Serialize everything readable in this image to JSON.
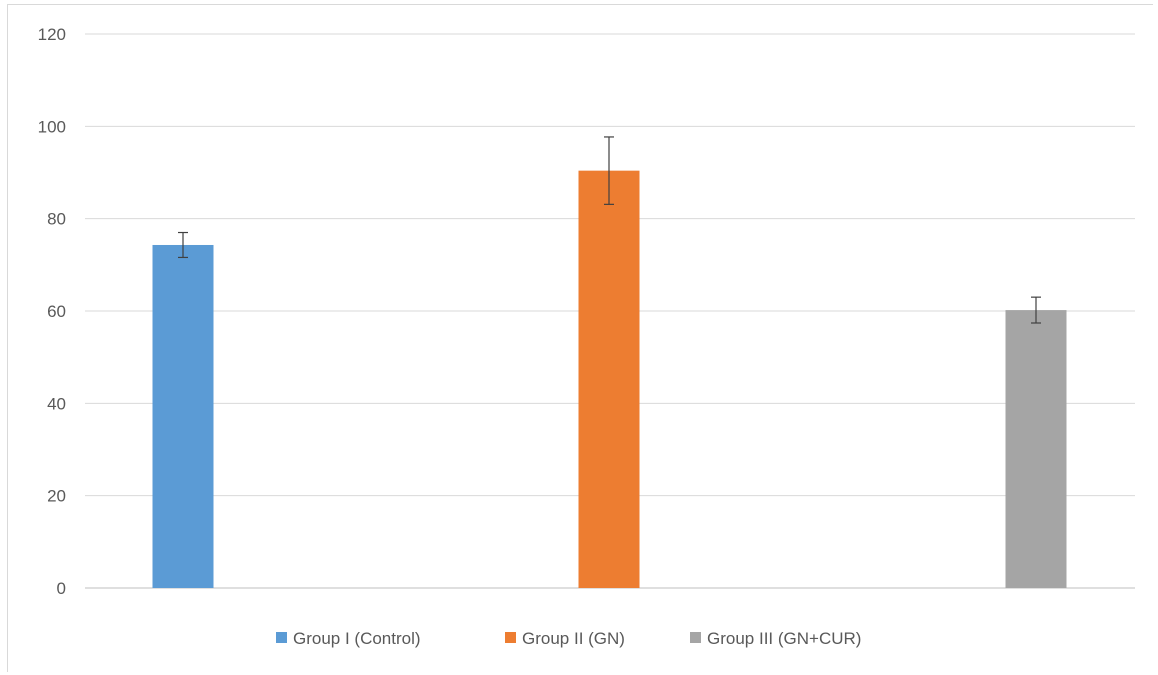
{
  "chart_data": {
    "type": "bar",
    "title": "",
    "xlabel": "",
    "ylabel": "",
    "ylim": [
      0,
      120
    ],
    "yticks": [
      0,
      20,
      40,
      60,
      80,
      100,
      120
    ],
    "grid": true,
    "legend_position": "bottom",
    "series": [
      {
        "name": "Group I (Control)",
        "value": 74.3,
        "error": 2.7,
        "color": "#5b9bd5"
      },
      {
        "name": "Group II (GN)",
        "value": 90.4,
        "error": 7.3,
        "color": "#ed7d31"
      },
      {
        "name": "Group III (GN+CUR)",
        "value": 60.2,
        "error": 2.8,
        "color": "#a5a5a5"
      }
    ]
  }
}
